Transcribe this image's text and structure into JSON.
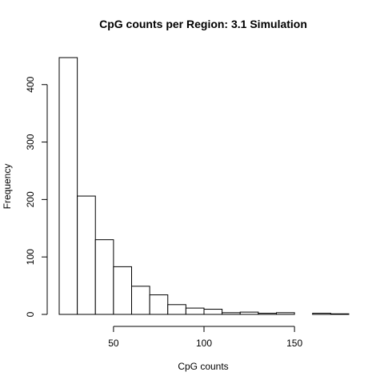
{
  "chart_data": {
    "type": "bar",
    "subtype": "histogram",
    "title": "CpG counts per Region: 3.1 Simulation",
    "xlabel": "CpG counts",
    "ylabel": "Frequency",
    "bin_edges": [
      20,
      30,
      40,
      50,
      60,
      70,
      80,
      90,
      100,
      110,
      120,
      130,
      140,
      150,
      160,
      170,
      180
    ],
    "values": [
      447,
      206,
      130,
      83,
      49,
      34,
      17,
      11,
      9,
      3,
      4,
      2,
      3,
      0,
      2,
      1
    ],
    "xlim": [
      20,
      180
    ],
    "ylim": [
      0,
      447
    ],
    "x_ticks": [
      50,
      100,
      150
    ],
    "y_ticks": [
      0,
      100,
      200,
      300,
      400
    ],
    "grid": false,
    "bar_fill": "#ffffff",
    "bar_stroke": "#000000"
  }
}
